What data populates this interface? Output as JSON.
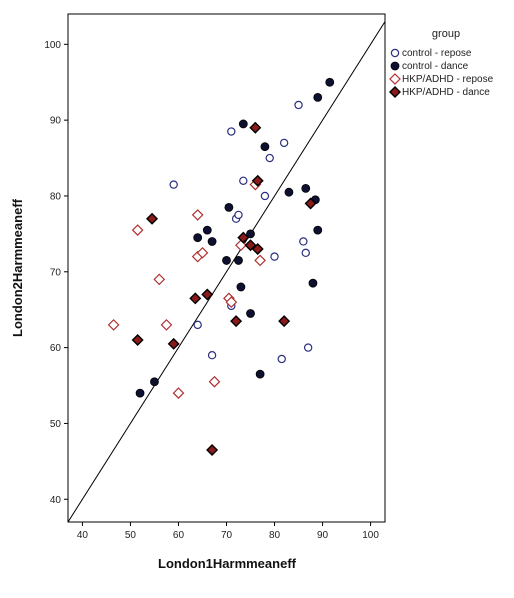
{
  "chart_data": {
    "type": "scatter",
    "xlabel": "London1Harmmeaneff",
    "ylabel": "London2Harmmeaneff",
    "xlim": [
      37,
      103
    ],
    "ylim": [
      37,
      104
    ],
    "x_ticks": [
      40,
      50,
      60,
      70,
      80,
      90,
      100
    ],
    "y_ticks": [
      40,
      50,
      60,
      70,
      80,
      90,
      100
    ],
    "grid": false,
    "reference_line": "y = x",
    "legend_title": "group",
    "legend_placement": "right",
    "series": [
      {
        "name": "control - repose",
        "marker": "open-circle",
        "color": "#2b2f7f",
        "points": [
          [
            59,
            81.5
          ],
          [
            64,
            63
          ],
          [
            67,
            59
          ],
          [
            71,
            88.5
          ],
          [
            71,
            65.5
          ],
          [
            72,
            77
          ],
          [
            72.5,
            77.5
          ],
          [
            73.5,
            82
          ],
          [
            78,
            80
          ],
          [
            79,
            85
          ],
          [
            80,
            72
          ],
          [
            81.5,
            58.5
          ],
          [
            82,
            87
          ],
          [
            85,
            92
          ],
          [
            86,
            74
          ],
          [
            86.5,
            72.5
          ],
          [
            87,
            60
          ]
        ]
      },
      {
        "name": "control - dance",
        "marker": "filled-circle",
        "color": "#0d1030",
        "points": [
          [
            52,
            54
          ],
          [
            55,
            55.5
          ],
          [
            64,
            74.5
          ],
          [
            66,
            75.5
          ],
          [
            67,
            74
          ],
          [
            70,
            71.5
          ],
          [
            70.5,
            78.5
          ],
          [
            72.5,
            71.5
          ],
          [
            73,
            68
          ],
          [
            73.5,
            89.5
          ],
          [
            75,
            75
          ],
          [
            75,
            64.5
          ],
          [
            77,
            56.5
          ],
          [
            78,
            86.5
          ],
          [
            83,
            80.5
          ],
          [
            86.5,
            81
          ],
          [
            88,
            68.5
          ],
          [
            88.5,
            79.5
          ],
          [
            89,
            93
          ],
          [
            89,
            75.5
          ],
          [
            91.5,
            95
          ]
        ]
      },
      {
        "name": "HKP/ADHD - repose",
        "marker": "open-diamond",
        "color": "#b03030",
        "points": [
          [
            46.5,
            63
          ],
          [
            51.5,
            75.5
          ],
          [
            56,
            69
          ],
          [
            57.5,
            63
          ],
          [
            60,
            54
          ],
          [
            64,
            72
          ],
          [
            64,
            77.5
          ],
          [
            65,
            72.5
          ],
          [
            67.5,
            55.5
          ],
          [
            70.5,
            66.5
          ],
          [
            71,
            66
          ],
          [
            73,
            73.5
          ],
          [
            76,
            81.5
          ],
          [
            77,
            71.5
          ]
        ]
      },
      {
        "name": "HKP/ADHD - dance",
        "marker": "filled-diamond",
        "color": "#8b1a1a",
        "points": [
          [
            51.5,
            61
          ],
          [
            54.5,
            77
          ],
          [
            59,
            60.5
          ],
          [
            63.5,
            66.5
          ],
          [
            66,
            67
          ],
          [
            67,
            46.5
          ],
          [
            72,
            63.5
          ],
          [
            73.5,
            74.5
          ],
          [
            75,
            73.5
          ],
          [
            76,
            89
          ],
          [
            76.5,
            73
          ],
          [
            76.5,
            82
          ],
          [
            82,
            63.5
          ],
          [
            87.5,
            79
          ]
        ]
      }
    ]
  }
}
